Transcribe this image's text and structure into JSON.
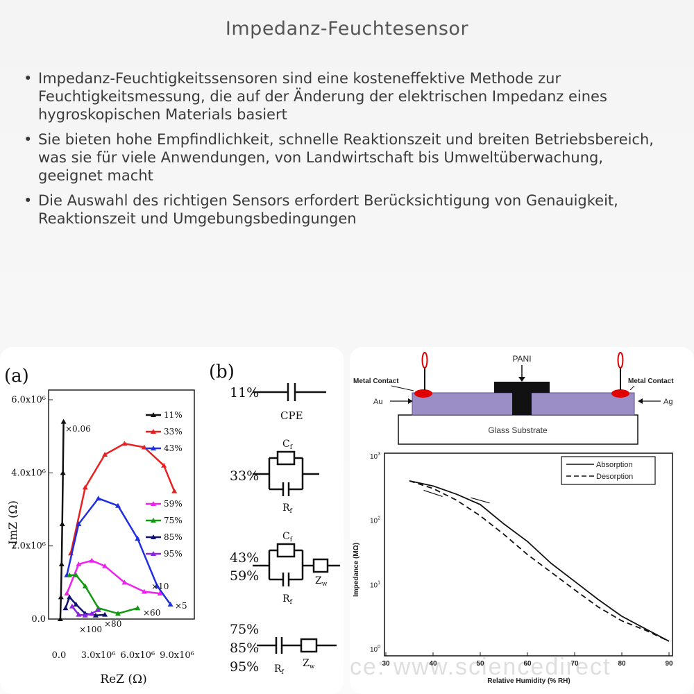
{
  "slide": {
    "title": "Impedanz-Feuchtesensor",
    "bullets": [
      "Impedanz-Feuchtigkeitssensoren sind eine kosteneffektive Methode zur Feuchtigkeitsmessung, die auf der Änderung der elektrischen Impedanz eines hygroskopischen Materials basiert",
      "Sie bieten hohe Empfindlichkeit, schnelle Reaktionszeit und breiten Betriebsbereich, was sie für viele Anwendungen, von Landwirtschaft bis Umweltüberwachung, geeignet macht",
      "Die Auswahl des richtigen Sensors erfordert Berücksichtigung von Genauigkeit, Reaktionszeit und Umgebungsbedingungen"
    ]
  },
  "panel_a": {
    "label": "(a)",
    "y_axis_label": "-ImZ (Ω)",
    "x_axis_label": "ReZ (Ω)",
    "y_ticks": [
      "6.0x10⁶",
      "4.0x10⁶",
      "2.0x10⁶",
      "0.0"
    ],
    "x_ticks": [
      "0.0",
      "3.0x10⁶",
      "6.0x10⁶",
      "9.0x10⁶"
    ],
    "legend_top": [
      {
        "label": "11%",
        "color": "#111111"
      },
      {
        "label": "33%",
        "color": "#e82020"
      },
      {
        "label": "43%",
        "color": "#1f2fe0"
      }
    ],
    "legend_bottom": [
      {
        "label": "59%",
        "color": "#ee22ee"
      },
      {
        "label": "75%",
        "color": "#119911"
      },
      {
        "label": "85%",
        "color": "#101070"
      },
      {
        "label": "95%",
        "color": "#8e22e6"
      }
    ],
    "multipliers": [
      "×0.06",
      "×10",
      "×5",
      "×60",
      "×100",
      "×80"
    ]
  },
  "panel_b": {
    "label": "(b)",
    "rows": [
      {
        "rh": [
          "11%"
        ],
        "labels": [
          "CPE"
        ]
      },
      {
        "rh": [
          "33%"
        ],
        "labels": [
          "C",
          "R"
        ]
      },
      {
        "rh": [
          "43%",
          "59%"
        ],
        "labels": [
          "C",
          "R",
          "Z"
        ]
      },
      {
        "rh": [
          "75%",
          "85%",
          "95%"
        ],
        "labels": [
          "R",
          "Z"
        ]
      }
    ],
    "subscript_f": "f",
    "subscript_w": "w"
  },
  "panel_c": {
    "pani_label": "PANI",
    "metal_contact_left": "Metal Contact",
    "metal_contact_right": "Metal Contact",
    "au_label": "Au",
    "ag_label": "Ag",
    "substrate_label": "Glass Substrate",
    "y_axis_label": "Impedance (MΩ)",
    "x_axis_label": "Relative Humidity (% RH)",
    "legend": [
      "Absorption",
      "Desorption"
    ],
    "watermark": "ce: www.sciencedirect"
  },
  "colors": {
    "primer": "#9b8dc6",
    "electrode": "#e00000",
    "pani": "#111111"
  },
  "chart_data": [
    {
      "type": "scatter",
      "title": "",
      "xlabel": "ReZ (Ω)",
      "ylabel": "-ImZ (Ω)",
      "x_tick_labels": [
        "0.0",
        "3.0x10⁶",
        "6.0x10⁶",
        "9.0x10⁶"
      ],
      "y_tick_labels": [
        "0.0",
        "2.0x10⁶",
        "4.0x10⁶",
        "6.0x10⁶"
      ],
      "xlim": [
        0,
        9000000
      ],
      "ylim": [
        0,
        6000000
      ],
      "series": [
        {
          "name": "11%",
          "scale": "×0.06",
          "x": [
            100000,
            150000,
            200000,
            250000,
            300000,
            350000
          ],
          "y": [
            0,
            600000,
            1500000,
            2600000,
            4000000,
            5400000
          ]
        },
        {
          "name": "33%",
          "scale": "×10",
          "x": [
            900000,
            2000000,
            3500000,
            5000000,
            6500000,
            8000000,
            8800000
          ],
          "y": [
            1800000,
            3600000,
            4500000,
            4800000,
            4700000,
            4200000,
            3500000
          ]
        },
        {
          "name": "43%",
          "scale": "×5",
          "x": [
            600000,
            1500000,
            3000000,
            4500000,
            6000000,
            7500000,
            8500000
          ],
          "y": [
            1200000,
            2600000,
            3300000,
            3100000,
            2200000,
            900000,
            400000
          ]
        },
        {
          "name": "59%",
          "scale": "×10",
          "x": [
            600000,
            1500000,
            2500000,
            3500000,
            5000000,
            6500000,
            7700000
          ],
          "y": [
            700000,
            1500000,
            1600000,
            1450000,
            1000000,
            750000,
            700000
          ]
        },
        {
          "name": "75%",
          "scale": "×60",
          "x": [
            800000,
            1300000,
            2000000,
            3000000,
            4500000,
            6000000
          ],
          "y": [
            1200000,
            1200000,
            900000,
            300000,
            150000,
            300000
          ]
        },
        {
          "name": "85%",
          "scale": "×80",
          "x": [
            500000,
            800000,
            1300000,
            2000000,
            2800000,
            3500000
          ],
          "y": [
            300000,
            600000,
            400000,
            150000,
            100000,
            120000
          ]
        },
        {
          "name": "95%",
          "scale": "×100",
          "x": [
            1000000,
            1500000,
            2000000,
            2500000,
            3000000
          ],
          "y": [
            350000,
            120000,
            100000,
            150000,
            250000
          ]
        }
      ]
    },
    {
      "type": "line",
      "title": "",
      "xlabel": "Relative Humidity (% RH)",
      "ylabel": "Impedance (MΩ)",
      "x_ticks": [
        30,
        40,
        50,
        60,
        70,
        80,
        90
      ],
      "y_scale": "log",
      "ylim": [
        1,
        1000
      ],
      "series": [
        {
          "name": "Absorption",
          "x": [
            35,
            40,
            45,
            50,
            55,
            60,
            65,
            70,
            75,
            80,
            85,
            90
          ],
          "y": [
            420,
            350,
            260,
            180,
            90,
            48,
            22,
            11.5,
            6,
            3.3,
            2.1,
            1.35
          ]
        },
        {
          "name": "Desorption",
          "x": [
            35,
            40,
            45,
            50,
            55,
            60,
            65,
            70,
            75,
            80,
            85,
            90
          ],
          "y": [
            420,
            320,
            210,
            120,
            62,
            30,
            16,
            8.5,
            4.6,
            2.8,
            2.0,
            1.35
          ]
        }
      ]
    }
  ]
}
